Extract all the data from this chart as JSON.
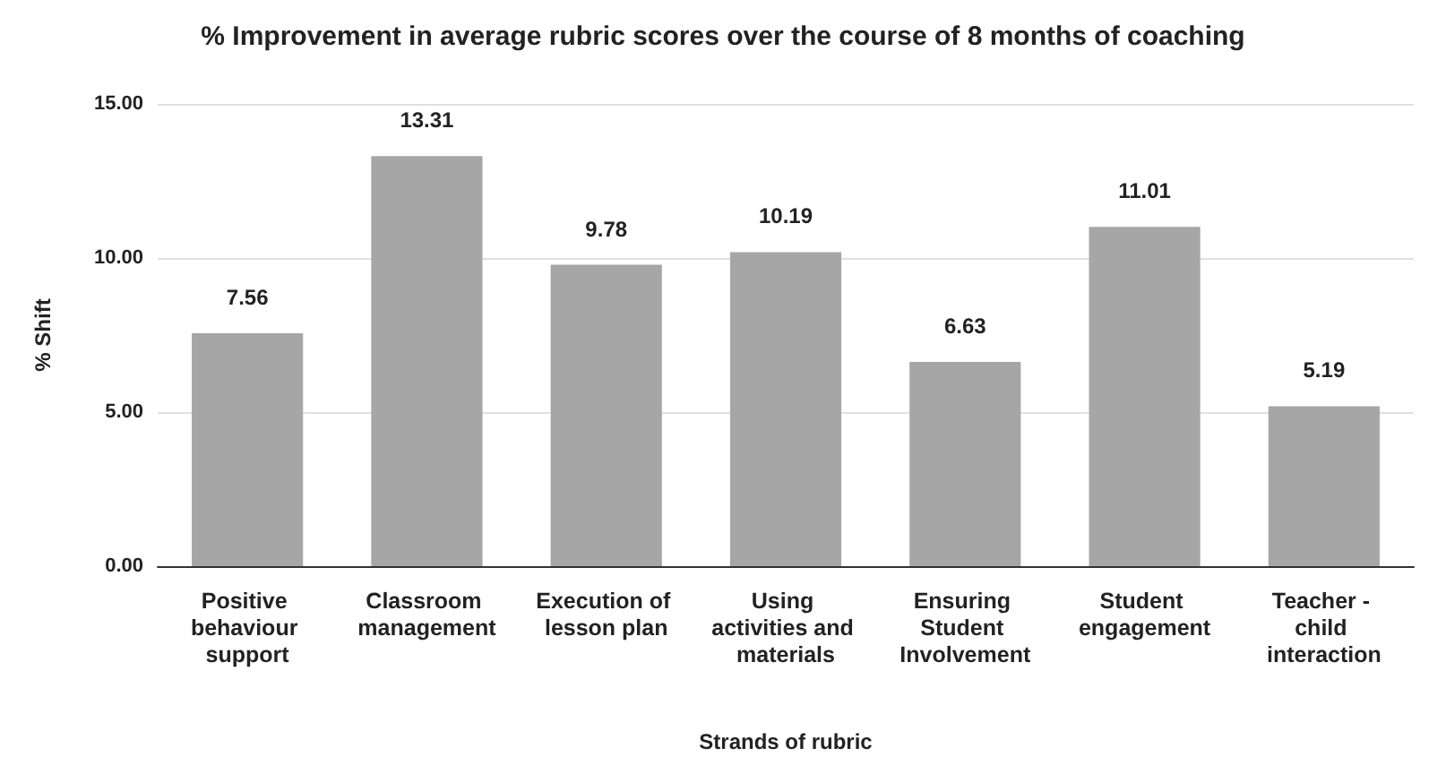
{
  "chart_data": {
    "type": "bar",
    "title": "% Improvement in average rubric scores over the course of 8 months of coaching",
    "xlabel": "Strands of rubric",
    "ylabel": "% Shift",
    "categories": [
      "Positive behaviour support",
      "Classroom management",
      "Execution of lesson plan",
      "Using activities and materials",
      "Ensuring Student Involvement",
      "Student engagement",
      "Teacher - child interaction"
    ],
    "values": [
      7.56,
      13.31,
      9.78,
      10.19,
      6.63,
      11.01,
      5.19
    ],
    "color": "#a6a6a6",
    "ylim": [
      0,
      15
    ],
    "yticks": [
      {
        "value": 0,
        "label": "0.00"
      },
      {
        "value": 5,
        "label": "5.00"
      },
      {
        "value": 10,
        "label": "10.00"
      },
      {
        "value": 15,
        "label": "15.00"
      }
    ],
    "grid": "y",
    "data_labels": true
  }
}
